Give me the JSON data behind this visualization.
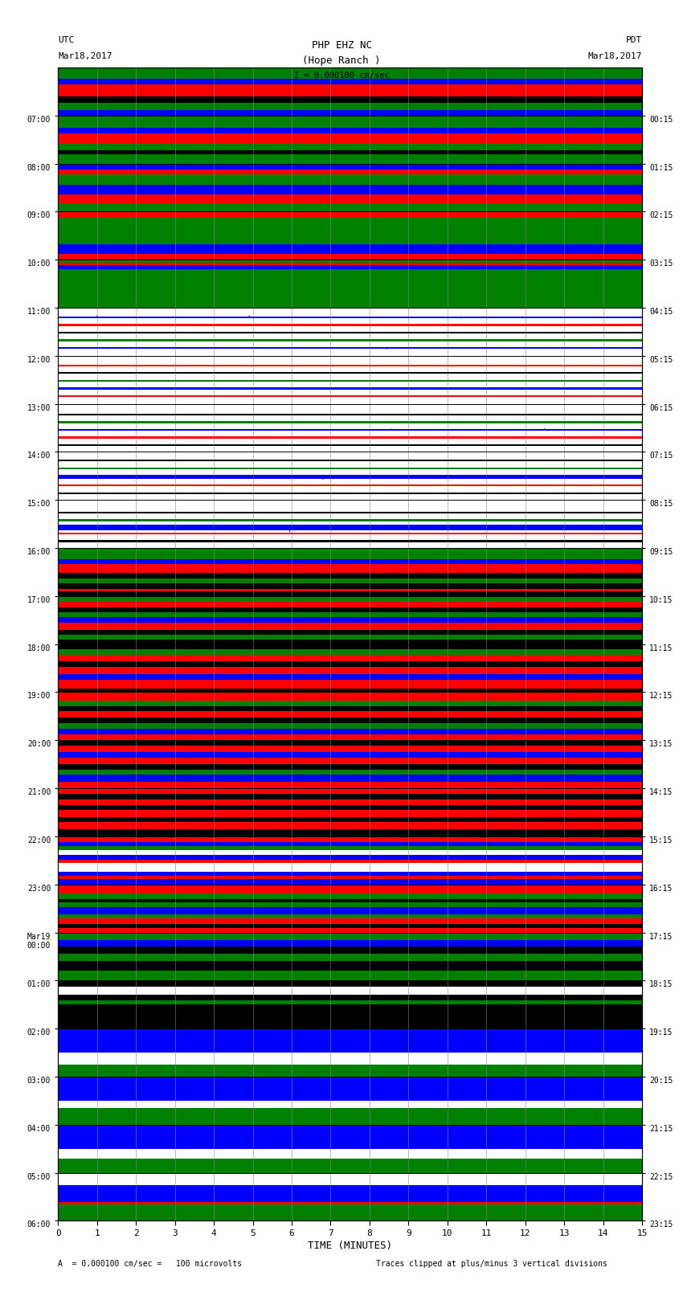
{
  "title_line1": "PHP EHZ NC",
  "title_line2": "(Hope Ranch )",
  "scale_label": "I = 0.000100 cm/sec",
  "left_label_top": "UTC",
  "left_label_date": "Mar18,2017",
  "right_label_top": "PDT",
  "right_label_date": "Mar18,2017",
  "bottom_label": "TIME (MINUTES)",
  "bottom_note": "A  = 0.000100 cm/sec =   100 microvolts",
  "bottom_note2": "Traces clipped at plus/minus 3 vertical divisions",
  "left_time_labels": [
    "07:00",
    "08:00",
    "09:00",
    "10:00",
    "11:00",
    "12:00",
    "13:00",
    "14:00",
    "15:00",
    "16:00",
    "17:00",
    "18:00",
    "19:00",
    "20:00",
    "21:00",
    "22:00",
    "23:00",
    "Mar19\n00:00",
    "01:00",
    "02:00",
    "03:00",
    "04:00",
    "05:00",
    "06:00"
  ],
  "right_time_labels": [
    "00:15",
    "01:15",
    "02:15",
    "03:15",
    "04:15",
    "05:15",
    "06:15",
    "07:15",
    "08:15",
    "09:15",
    "10:15",
    "11:15",
    "12:15",
    "13:15",
    "14:15",
    "15:15",
    "16:15",
    "17:15",
    "18:15",
    "19:15",
    "20:15",
    "21:15",
    "22:15",
    "23:15"
  ],
  "num_rows": 24,
  "total_minutes": 15.0,
  "row_band_data": [
    {
      "row": 0,
      "bands": [
        [
          "#0000ff",
          0.12
        ],
        [
          "#008000",
          0.15
        ],
        [
          "#000000",
          0.12
        ],
        [
          "#ff0000",
          0.25
        ],
        [
          "#0000ff",
          0.12
        ],
        [
          "#008000",
          0.24
        ]
      ]
    },
    {
      "row": 1,
      "bands": [
        [
          "#008000",
          0.2
        ],
        [
          "#000000",
          0.08
        ],
        [
          "#008000",
          0.15
        ],
        [
          "#ff0000",
          0.2
        ],
        [
          "#0000ff",
          0.12
        ],
        [
          "#008000",
          0.25
        ]
      ]
    },
    {
      "row": 2,
      "bands": [
        [
          "#008000",
          0.18
        ],
        [
          "#ff0000",
          0.18
        ],
        [
          "#0000ff",
          0.2
        ],
        [
          "#008000",
          0.22
        ],
        [
          "#ff0000",
          0.1
        ],
        [
          "#0000ff",
          0.12
        ]
      ]
    },
    {
      "row": 3,
      "bands": [
        [
          "#ff0000",
          0.12
        ],
        [
          "#0000ff",
          0.2
        ],
        [
          "#008000",
          0.4
        ],
        [
          "#008000",
          0.15
        ],
        [
          "#ff0000",
          0.13
        ]
      ]
    },
    {
      "row": 4,
      "bands": [
        [
          "#008000",
          0.55
        ],
        [
          "#008000",
          0.25
        ],
        [
          "#0000ff",
          0.08
        ],
        [
          "#ff0000",
          0.05
        ],
        [
          "#008000",
          0.07
        ]
      ]
    },
    {
      "row": 5,
      "bands": [
        [
          "#ffffff",
          0.14
        ],
        [
          "#0000ff",
          0.04
        ],
        [
          "#ffffff",
          0.12
        ],
        [
          "#008000",
          0.04
        ],
        [
          "#ffffff",
          0.12
        ],
        [
          "#000000",
          0.04
        ],
        [
          "#ffffff",
          0.12
        ],
        [
          "#ff0000",
          0.04
        ],
        [
          "#ffffff",
          0.12
        ],
        [
          "#0000ff",
          0.04
        ],
        [
          "#ffffff",
          0.18
        ]
      ]
    },
    {
      "row": 6,
      "bands": [
        [
          "#ffffff",
          0.14
        ],
        [
          "#ff0000",
          0.04
        ],
        [
          "#ffffff",
          0.12
        ],
        [
          "#0000ff",
          0.04
        ],
        [
          "#ffffff",
          0.12
        ],
        [
          "#008000",
          0.04
        ],
        [
          "#ffffff",
          0.12
        ],
        [
          "#000000",
          0.04
        ],
        [
          "#ffffff",
          0.12
        ],
        [
          "#ff0000",
          0.04
        ],
        [
          "#ffffff",
          0.18
        ]
      ]
    },
    {
      "row": 7,
      "bands": [
        [
          "#ffffff",
          0.12
        ],
        [
          "#000000",
          0.04
        ],
        [
          "#ffffff",
          0.12
        ],
        [
          "#ff0000",
          0.04
        ],
        [
          "#ffffff",
          0.12
        ],
        [
          "#0000ff",
          0.04
        ],
        [
          "#ffffff",
          0.12
        ],
        [
          "#008000",
          0.04
        ],
        [
          "#ffffff",
          0.12
        ],
        [
          "#000000",
          0.04
        ],
        [
          "#ffffff",
          0.2
        ]
      ]
    },
    {
      "row": 8,
      "bands": [
        [
          "#ffffff",
          0.12
        ],
        [
          "#000000",
          0.04
        ],
        [
          "#ffffff",
          0.12
        ],
        [
          "#ff0000",
          0.04
        ],
        [
          "#ffffff",
          0.12
        ],
        [
          "#0000ff",
          0.08
        ],
        [
          "#ffffff",
          0.12
        ],
        [
          "#008000",
          0.04
        ],
        [
          "#ffffff",
          0.12
        ],
        [
          "#000000",
          0.04
        ],
        [
          "#ffffff",
          0.16
        ]
      ]
    },
    {
      "row": 9,
      "bands": [
        [
          "#ffffff",
          0.12
        ],
        [
          "#000000",
          0.04
        ],
        [
          "#ffffff",
          0.12
        ],
        [
          "#ff0000",
          0.04
        ],
        [
          "#ffffff",
          0.04
        ],
        [
          "#0000ff",
          0.12
        ],
        [
          "#ffffff",
          0.08
        ],
        [
          "#008000",
          0.04
        ],
        [
          "#ffffff",
          0.12
        ],
        [
          "#000000",
          0.04
        ],
        [
          "#ffffff",
          0.24
        ]
      ]
    },
    {
      "row": 10,
      "bands": [
        [
          "#000000",
          0.1
        ],
        [
          "#ff0000",
          0.04
        ],
        [
          "#000000",
          0.12
        ],
        [
          "#008000",
          0.1
        ],
        [
          "#000000",
          0.12
        ],
        [
          "#ff0000",
          0.18
        ],
        [
          "#0000ff",
          0.1
        ],
        [
          "#008000",
          0.24
        ]
      ]
    },
    {
      "row": 11,
      "bands": [
        [
          "#000000",
          0.1
        ],
        [
          "#008000",
          0.1
        ],
        [
          "#000000",
          0.1
        ],
        [
          "#ff0000",
          0.14
        ],
        [
          "#0000ff",
          0.12
        ],
        [
          "#008000",
          0.1
        ],
        [
          "#000000",
          0.1
        ],
        [
          "#ff0000",
          0.12
        ],
        [
          "#008000",
          0.12
        ]
      ]
    },
    {
      "row": 12,
      "bands": [
        [
          "#000000",
          0.08
        ],
        [
          "#ff0000",
          0.18
        ],
        [
          "#0000ff",
          0.12
        ],
        [
          "#ff0000",
          0.15
        ],
        [
          "#000000",
          0.12
        ],
        [
          "#ff0000",
          0.12
        ],
        [
          "#008000",
          0.12
        ],
        [
          "#000000",
          0.11
        ]
      ]
    },
    {
      "row": 13,
      "bands": [
        [
          "#ff0000",
          0.12
        ],
        [
          "#0000ff",
          0.12
        ],
        [
          "#008000",
          0.12
        ],
        [
          "#000000",
          0.12
        ],
        [
          "#ff0000",
          0.12
        ],
        [
          "#000000",
          0.1
        ],
        [
          "#008000",
          0.12
        ],
        [
          "#ff0000",
          0.18
        ]
      ]
    },
    {
      "row": 14,
      "bands": [
        [
          "#ff0000",
          0.14
        ],
        [
          "#0000ff",
          0.14
        ],
        [
          "#008000",
          0.1
        ],
        [
          "#000000",
          0.12
        ],
        [
          "#ff0000",
          0.14
        ],
        [
          "#0000ff",
          0.12
        ],
        [
          "#ff0000",
          0.12
        ],
        [
          "#000000",
          0.12
        ]
      ]
    },
    {
      "row": 15,
      "bands": [
        [
          "#000000",
          0.15
        ],
        [
          "#ff0000",
          0.15
        ],
        [
          "#000000",
          0.1
        ],
        [
          "#ff0000",
          0.15
        ],
        [
          "#000000",
          0.1
        ],
        [
          "#ff0000",
          0.12
        ],
        [
          "#000000",
          0.12
        ],
        [
          "#ff0000",
          0.11
        ]
      ]
    },
    {
      "row": 16,
      "bands": [
        [
          "#0000ff",
          0.12
        ],
        [
          "#ff0000",
          0.06
        ],
        [
          "#0000ff",
          0.08
        ],
        [
          "#ffffff",
          0.18
        ],
        [
          "#ff0000",
          0.08
        ],
        [
          "#0000ff",
          0.1
        ],
        [
          "#ffffff",
          0.1
        ],
        [
          "#008000",
          0.08
        ],
        [
          "#0000ff",
          0.08
        ],
        [
          "#ff0000",
          0.12
        ]
      ]
    },
    {
      "row": 17,
      "bands": [
        [
          "#ff0000",
          0.1
        ],
        [
          "#000000",
          0.08
        ],
        [
          "#ff0000",
          0.12
        ],
        [
          "#008000",
          0.08
        ],
        [
          "#0000ff",
          0.14
        ],
        [
          "#008000",
          0.1
        ],
        [
          "#000000",
          0.08
        ],
        [
          "#008000",
          0.12
        ],
        [
          "#ff0000",
          0.18
        ]
      ]
    },
    {
      "row": 18,
      "bands": [
        [
          "#008000",
          0.2
        ],
        [
          "#000000",
          0.2
        ],
        [
          "#008000",
          0.15
        ],
        [
          "#000000",
          0.15
        ],
        [
          "#0000ff",
          0.15
        ],
        [
          "#008000",
          0.15
        ]
      ]
    },
    {
      "row": 19,
      "bands": [
        [
          "#000000",
          0.5
        ],
        [
          "#008000",
          0.08
        ],
        [
          "#000000",
          0.12
        ],
        [
          "#ffffff",
          0.18
        ],
        [
          "#000000",
          0.12
        ]
      ]
    },
    {
      "row": 20,
      "bands": [
        [
          "#008000",
          0.25
        ],
        [
          "#ffffff",
          0.25
        ],
        [
          "#0000ff",
          0.5
        ]
      ]
    },
    {
      "row": 21,
      "bands": [
        [
          "#008000",
          0.35
        ],
        [
          "#ffffff",
          0.15
        ],
        [
          "#0000ff",
          0.5
        ]
      ]
    },
    {
      "row": 22,
      "bands": [
        [
          "#008000",
          0.3
        ],
        [
          "#ffffff",
          0.2
        ],
        [
          "#0000ff",
          0.5
        ]
      ]
    },
    {
      "row": 23,
      "bands": [
        [
          "#008000",
          0.35
        ],
        [
          "#ff0000",
          0.04
        ],
        [
          "#0000ff",
          0.35
        ],
        [
          "#ffffff",
          0.26
        ]
      ]
    }
  ]
}
